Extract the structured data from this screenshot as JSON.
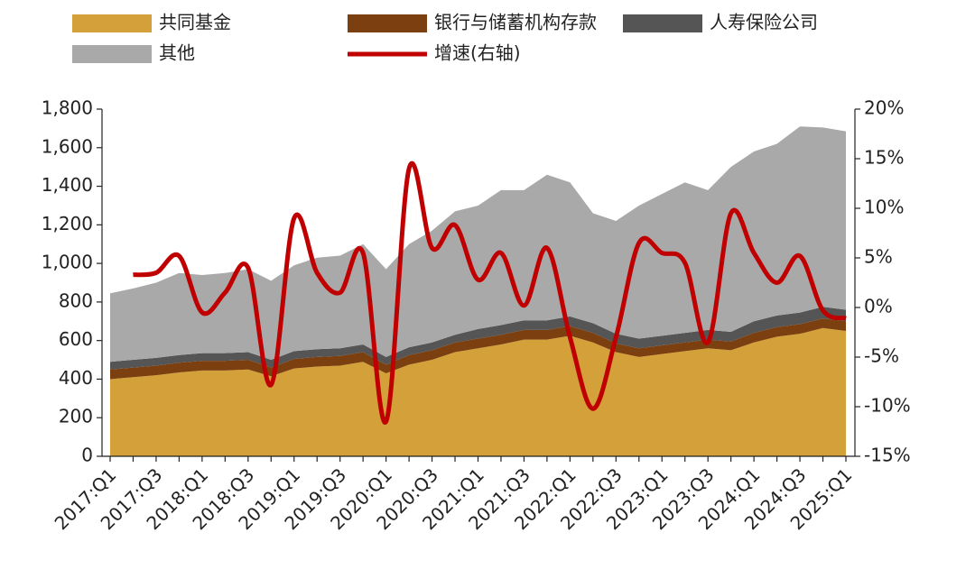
{
  "chart_data": {
    "type": "stacked-area-line",
    "categories": [
      "2017:Q1",
      null,
      "2017:Q3",
      null,
      "2018:Q1",
      null,
      "2018:Q3",
      null,
      "2019:Q1",
      null,
      "2019:Q3",
      null,
      "2020:Q1",
      null,
      "2020:Q3",
      null,
      "2021:Q1",
      null,
      "2021:Q3",
      null,
      "2022:Q1",
      null,
      "2022:Q3",
      null,
      "2023:Q1",
      null,
      "2023:Q3",
      null,
      "2024:Q1",
      null,
      "2024:Q3",
      null,
      "2025:Q1"
    ],
    "series": [
      {
        "name": "共同基金",
        "color": "#d4a03a",
        "values": [
          400,
          410,
          420,
          435,
          445,
          445,
          450,
          415,
          455,
          465,
          470,
          490,
          430,
          475,
          500,
          540,
          560,
          580,
          605,
          605,
          625,
          590,
          540,
          515,
          530,
          545,
          560,
          550,
          590,
          620,
          635,
          665,
          650
        ]
      },
      {
        "name": "银行与储蓄机构存款",
        "color": "#7b3f10",
        "values": [
          50,
          50,
          50,
          50,
          50,
          50,
          50,
          45,
          50,
          50,
          50,
          50,
          45,
          50,
          50,
          50,
          50,
          50,
          50,
          50,
          50,
          50,
          45,
          45,
          45,
          45,
          45,
          45,
          50,
          50,
          50,
          50,
          50
        ]
      },
      {
        "name": "人寿保险公司",
        "color": "#555555",
        "values": [
          40,
          40,
          40,
          40,
          40,
          40,
          40,
          40,
          40,
          40,
          40,
          40,
          40,
          40,
          40,
          40,
          50,
          50,
          50,
          50,
          50,
          50,
          50,
          50,
          50,
          50,
          50,
          50,
          60,
          60,
          60,
          60,
          60
        ]
      },
      {
        "name": "其他",
        "color": "#a9a9a9",
        "values": [
          355,
          370,
          390,
          425,
          405,
          415,
          430,
          410,
          445,
          475,
          480,
          520,
          455,
          535,
          580,
          640,
          640,
          700,
          675,
          755,
          695,
          570,
          585,
          690,
          735,
          780,
          725,
          855,
          880,
          890,
          965,
          930,
          925
        ]
      },
      {
        "name": "增速(右轴)",
        "color": "#c00000",
        "axis": "y2",
        "values": [
          null,
          3.3,
          3.5,
          5.2,
          -0.5,
          1.5,
          4.0,
          -7.8,
          9.0,
          3.5,
          1.5,
          5.5,
          -11.5,
          14.0,
          6.0,
          8.3,
          2.8,
          5.5,
          0.2,
          6.0,
          -3.0,
          -10.2,
          -3.0,
          6.5,
          5.5,
          4.5,
          -3.5,
          9.5,
          5.5,
          2.5,
          5.2,
          -0.3,
          -1.1
        ]
      }
    ],
    "ylim": [
      0,
      1800
    ],
    "yticks": [
      0,
      200,
      400,
      600,
      800,
      {
        "value": 1000,
        "label": "1,000"
      },
      {
        "value": 1200,
        "label": "1,200"
      },
      {
        "value": 1400,
        "label": "1,400"
      },
      {
        "value": 1600,
        "label": "1,600"
      },
      {
        "value": 1800,
        "label": "1,800"
      }
    ],
    "y2lim": [
      -15,
      20
    ],
    "y2ticks": [
      {
        "value": -15,
        "label": "-15%"
      },
      {
        "value": -10,
        "label": "-10%"
      },
      {
        "value": -5,
        "label": "-5%"
      },
      {
        "value": 0,
        "label": "0%"
      },
      {
        "value": 5,
        "label": "5%"
      },
      {
        "value": 10,
        "label": "10%"
      },
      {
        "value": 15,
        "label": "15%"
      },
      {
        "value": 20,
        "label": "20%"
      }
    ],
    "grid": false,
    "legend": "top"
  }
}
